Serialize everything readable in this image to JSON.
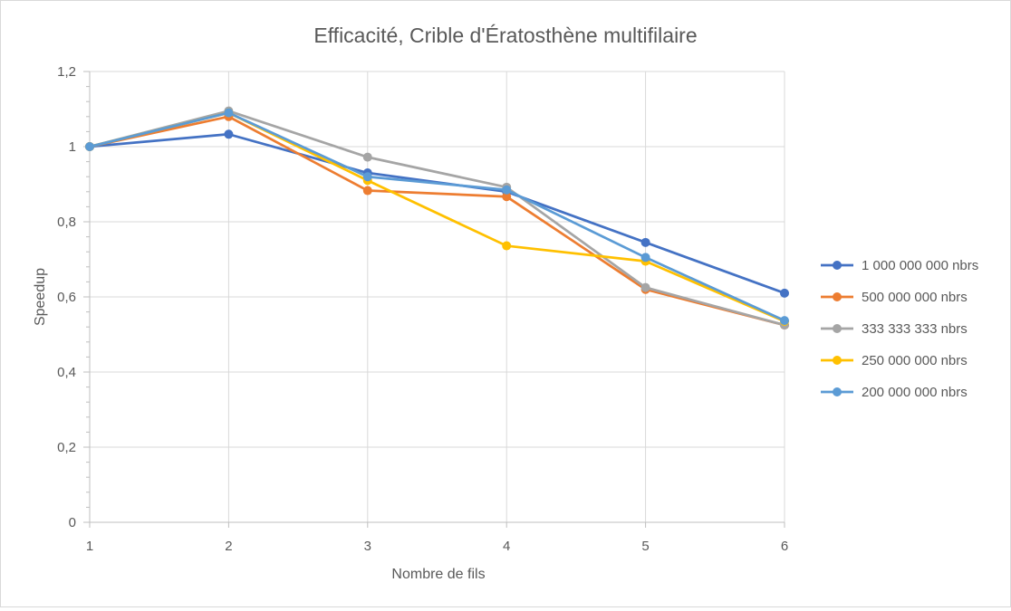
{
  "chart_data": {
    "type": "line",
    "title": "Efficacité, Crible d'Ératosthène multifilaire",
    "xlabel": "Nombre de fils",
    "ylabel": "Speedup",
    "x": [
      1,
      2,
      3,
      4,
      5,
      6
    ],
    "x_tick_labels": [
      "1",
      "2",
      "3",
      "4",
      "5",
      "6"
    ],
    "ylim": [
      0,
      1.2
    ],
    "y_ticks": [
      0,
      0.2,
      0.4,
      0.6,
      0.8,
      1,
      1.2
    ],
    "y_tick_labels": [
      "0",
      "0,2",
      "0,4",
      "0,6",
      "0,8",
      "1",
      "1,2"
    ],
    "grid": true,
    "legend_position": "right",
    "series": [
      {
        "name": "1 000 000 000 nbrs",
        "color": "#4472C4",
        "values": [
          1.0,
          1.033,
          0.93,
          0.88,
          0.745,
          0.61
        ]
      },
      {
        "name": "500 000 000 nbrs",
        "color": "#ED7D31",
        "values": [
          1.0,
          1.08,
          0.883,
          0.867,
          0.62,
          0.525
        ]
      },
      {
        "name": "333 333 333 nbrs",
        "color": "#A5A5A5",
        "values": [
          1.0,
          1.095,
          0.972,
          0.892,
          0.625,
          0.525
        ]
      },
      {
        "name": "250 000 000 nbrs",
        "color": "#FFC000",
        "values": [
          1.0,
          1.09,
          0.91,
          0.736,
          0.695,
          0.535
        ]
      },
      {
        "name": "200 000 000 nbrs",
        "color": "#5B9BD5",
        "values": [
          1.0,
          1.09,
          0.92,
          0.885,
          0.705,
          0.537
        ]
      }
    ]
  }
}
